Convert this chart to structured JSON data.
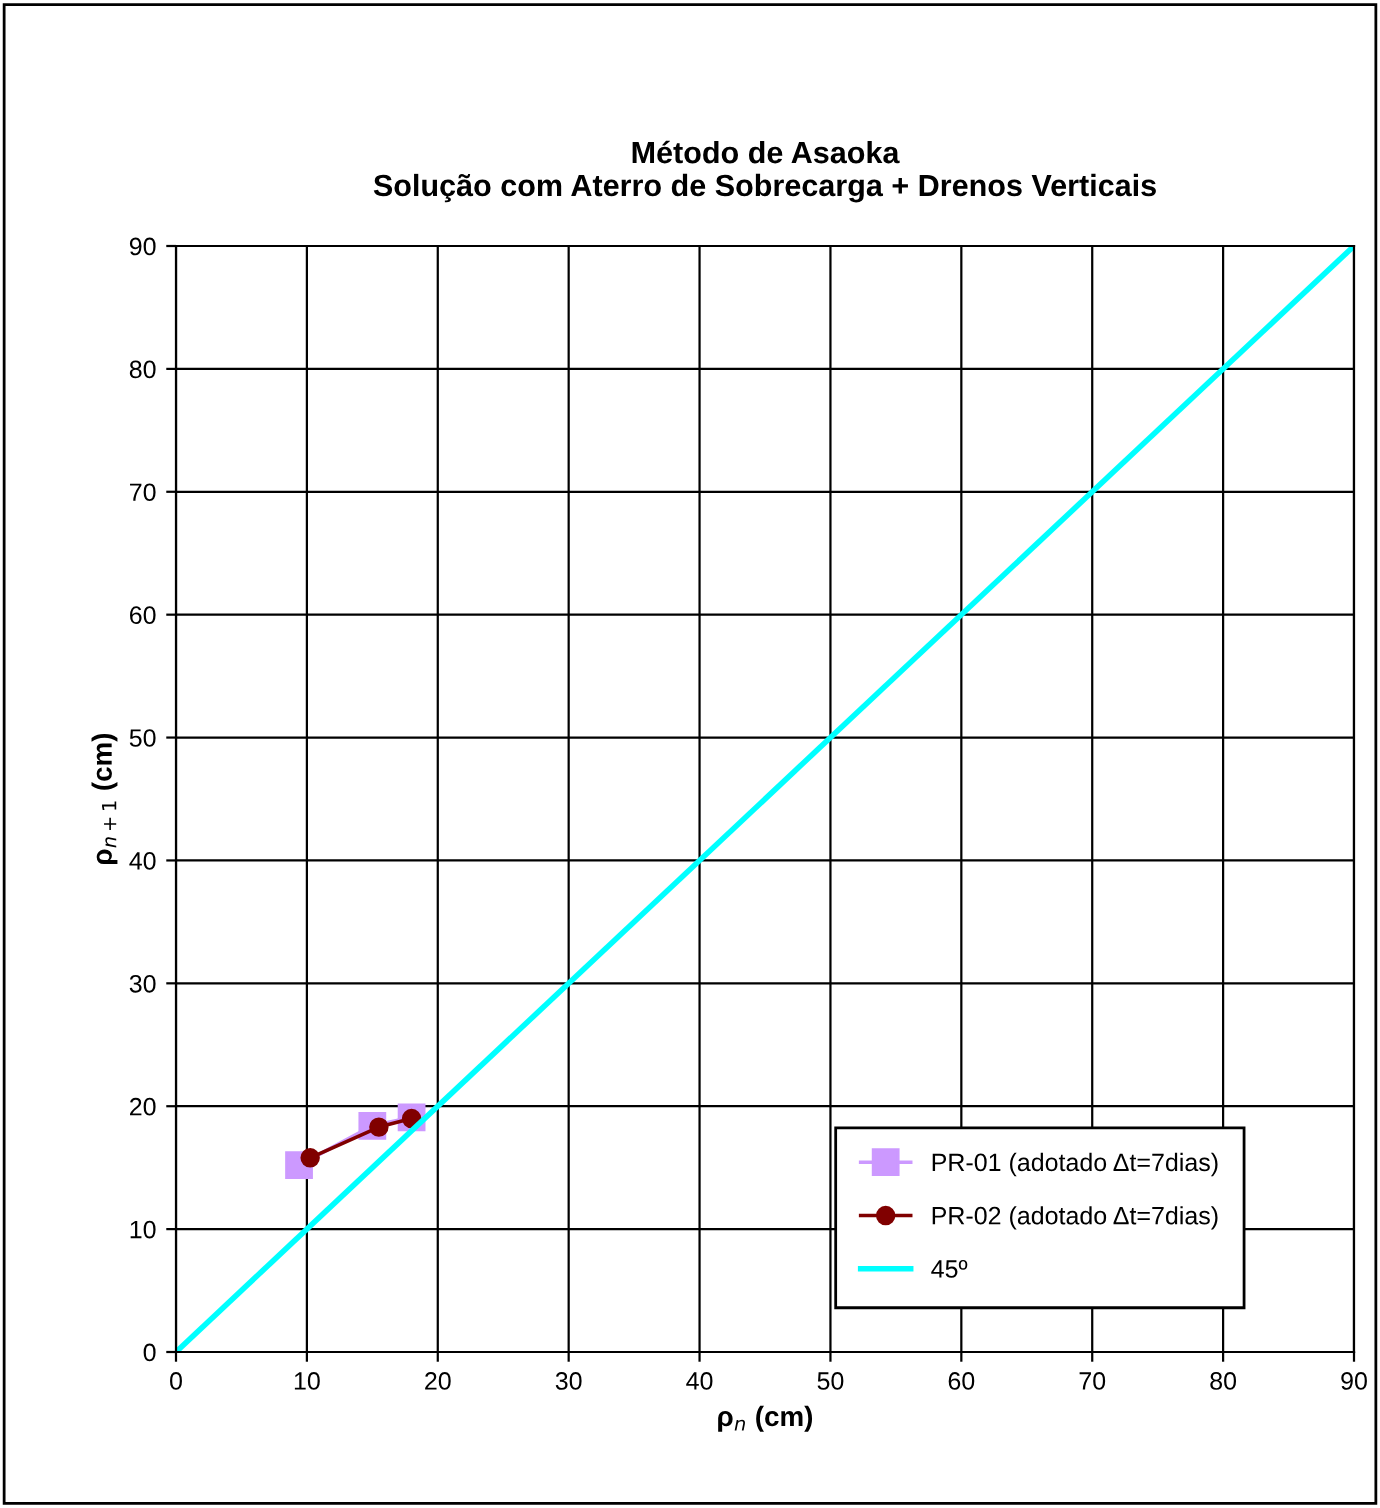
{
  "chart_data": {
    "type": "line",
    "title": "Método de Asaoka\nSolução com Aterro de Sobrecarga + Drenos Verticais",
    "xlabel": "ρ$_{n}$ (cm)",
    "ylabel": "ρ$_{n+1}$ (cm)",
    "xlim": [
      0,
      90
    ],
    "ylim": [
      0,
      90
    ],
    "xticks": [
      0,
      10,
      20,
      30,
      40,
      50,
      60,
      70,
      80,
      90
    ],
    "yticks": [
      0,
      10,
      20,
      30,
      40,
      50,
      60,
      70,
      80,
      90
    ],
    "grid": true,
    "legend": "bottom right",
    "series": [
      {
        "name": "PR-01 (adotado Δt=7dias)",
        "color": "#cc99ff",
        "x": [
          9.4,
          15.0,
          18.0
        ],
        "values": [
          15.2,
          18.4,
          19.1
        ],
        "marker": "square"
      },
      {
        "name": "PR-02 (adotado Δt=7dias)",
        "color": "#800000",
        "x": [
          10.25,
          15.5,
          18.0
        ],
        "values": [
          15.8,
          18.3,
          19.0
        ],
        "marker": "circle"
      },
      {
        "name": "45º",
        "color": "#00ffff",
        "x": [
          0,
          90
        ],
        "values": [
          0,
          90
        ],
        "marker": "none"
      }
    ]
  }
}
